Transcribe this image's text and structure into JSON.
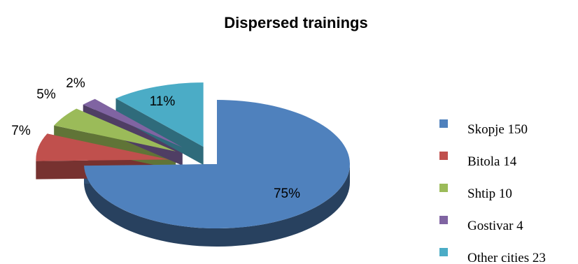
{
  "chart_data": {
    "type": "pie",
    "title": "Dispersed trainings",
    "categories": [
      "Skopje 150",
      "Bitola 14",
      "Shtip 10",
      "Gostivar 4",
      "Other cities 23"
    ],
    "values": [
      150,
      14,
      10,
      4,
      23
    ],
    "data_labels": [
      "75%",
      "7%",
      "5%",
      "2%",
      "11%"
    ],
    "colors": [
      "#4F81BD",
      "#C0504D",
      "#9BBB59",
      "#8064A2",
      "#4BACC6"
    ],
    "style": "3d-exploded",
    "legend_position": "right"
  }
}
